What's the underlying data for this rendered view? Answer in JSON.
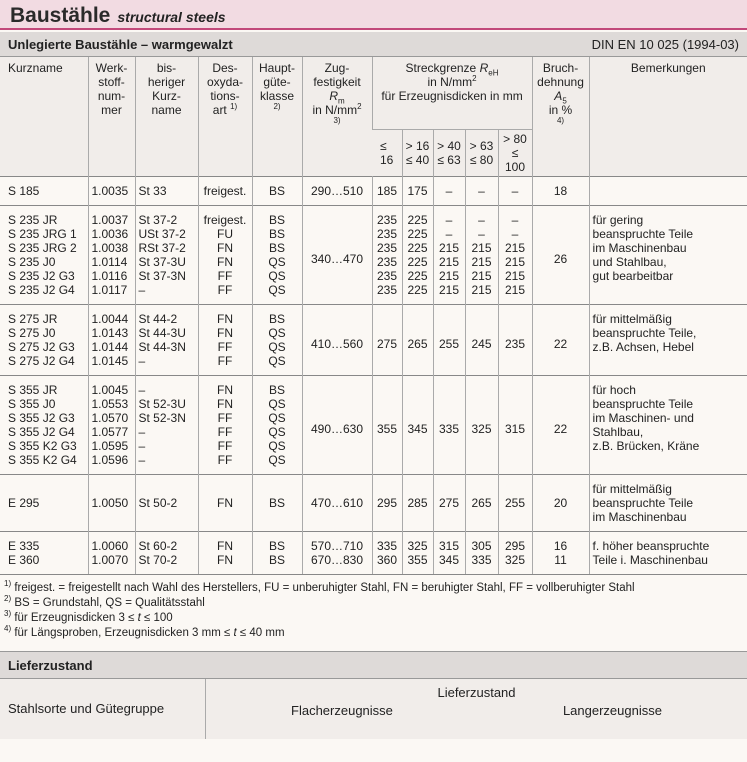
{
  "header": {
    "title": "Baustähle",
    "subtitle": "structural steels"
  },
  "section": {
    "title": "Unlegierte Baustähle – warmgewalzt",
    "norm": "DIN EN 10 025 (1994-03)"
  },
  "table": {
    "headers": [
      {
        "lines": [
          [
            "Kurzname"
          ]
        ]
      },
      {
        "lines": [
          [
            "Werk-"
          ],
          [
            "stoff-"
          ],
          [
            "num-"
          ],
          [
            "mer"
          ]
        ]
      },
      {
        "lines": [
          [
            "bis-"
          ],
          [
            "heriger"
          ],
          [
            "Kurz-"
          ],
          [
            "name"
          ]
        ]
      },
      {
        "lines": [
          [
            "Des-"
          ],
          [
            "oxyda-"
          ],
          [
            "tions-"
          ],
          [
            "art ",
            {
              "sup": "1)"
            }
          ]
        ]
      },
      {
        "lines": [
          [
            "Haupt-"
          ],
          [
            "güte-"
          ],
          [
            "klasse"
          ],
          [
            {
              "sup": "2)"
            }
          ]
        ]
      },
      {
        "lines": [
          [
            "Zug-"
          ],
          [
            "festigkeit"
          ],
          [
            {
              "i": "R"
            },
            {
              "sub": "m"
            }
          ],
          [
            "in N/mm",
            {
              "sup": "2"
            }
          ],
          [
            {
              "sup": "3)"
            }
          ]
        ]
      },
      {
        "lines": [
          [
            "Streckgrenze ",
            {
              "i": "R"
            },
            {
              "sub": "eH"
            }
          ],
          [
            "in N/mm",
            {
              "sup": "2"
            }
          ],
          [
            "für Erzeugnisdicken in mm"
          ]
        ]
      },
      {
        "lines": [
          [
            "Bruch-"
          ],
          [
            "dehnung"
          ],
          [
            {
              "i": "A"
            },
            {
              "sub": "5"
            }
          ],
          [
            "in %"
          ],
          [
            {
              "sup": "4)"
            }
          ]
        ]
      },
      {
        "lines": [
          [
            "Bemerkungen"
          ]
        ]
      }
    ],
    "yield_heads": [
      [
        [
          "≤ 16"
        ]
      ],
      [
        [
          "> 16"
        ],
        [
          "≤ 40"
        ]
      ],
      [
        [
          "> 40"
        ],
        [
          "≤ 63"
        ]
      ],
      [
        [
          "> 63"
        ],
        [
          "≤ 80"
        ]
      ],
      [
        [
          "> 80"
        ],
        [
          "≤ 100"
        ]
      ]
    ],
    "groups": [
      {
        "rows": [
          {
            "cells": [
              "S 185",
              "1.0035",
              "St 33",
              "freigest.",
              "BS"
            ],
            "rm": "290…510",
            "yield": [
              "185",
              "175",
              "–",
              "–",
              "–"
            ],
            "a": "18"
          }
        ]
      },
      {
        "rows": [
          {
            "cells": [
              "S 235 JR",
              "1.0037",
              "St 37-2",
              "freigest.",
              "BS"
            ],
            "yield": [
              "235",
              "225",
              "–",
              "–",
              "–"
            ]
          },
          {
            "cells": [
              "S 235 JRG 1",
              "1.0036",
              "USt 37-2",
              "FU",
              "BS"
            ],
            "yield": [
              "235",
              "225",
              "–",
              "–",
              "–"
            ]
          },
          {
            "cells": [
              "S 235 JRG 2",
              "1.0038",
              "RSt 37-2",
              "FN",
              "BS"
            ],
            "yield": [
              "235",
              "225",
              "215",
              "215",
              "215"
            ]
          },
          {
            "cells": [
              "S 235 J0",
              "1.0114",
              "St 37-3U",
              "FN",
              "QS"
            ],
            "yield": [
              "235",
              "225",
              "215",
              "215",
              "215"
            ]
          },
          {
            "cells": [
              "S 235 J2 G3",
              "1.0116",
              "St 37-3N",
              "FF",
              "QS"
            ],
            "yield": [
              "235",
              "225",
              "215",
              "215",
              "215"
            ]
          },
          {
            "cells": [
              "S 235 J2 G4",
              "1.0117",
              "–",
              "FF",
              "QS"
            ],
            "yield": [
              "235",
              "225",
              "215",
              "215",
              "215"
            ]
          }
        ],
        "rm": "340…470",
        "a": "26",
        "remark": [
          "für gering",
          "beanspruchte Teile",
          "im Maschinenbau",
          "und Stahlbau,",
          "gut bearbeitbar"
        ]
      },
      {
        "rows": [
          {
            "cells": [
              "S 275 JR",
              "1.0044",
              "St 44-2",
              "FN",
              "BS"
            ]
          },
          {
            "cells": [
              "S 275 J0",
              "1.0143",
              "St 44-3U",
              "FN",
              "QS"
            ]
          },
          {
            "cells": [
              "S 275 J2 G3",
              "1.0144",
              "St 44-3N",
              "FF",
              "QS"
            ]
          },
          {
            "cells": [
              "S 275 J2 G4",
              "1.0145",
              "–",
              "FF",
              "QS"
            ]
          }
        ],
        "rm": "410…560",
        "yield": [
          "275",
          "265",
          "255",
          "245",
          "235"
        ],
        "a": "22",
        "remark": [
          "für mittelmäßig",
          "beanspruchte Teile,",
          "z.B. Achsen, Hebel"
        ]
      },
      {
        "rows": [
          {
            "cells": [
              "S 355 JR",
              "1.0045",
              "–",
              "FN",
              "BS"
            ]
          },
          {
            "cells": [
              "S 355 J0",
              "1.0553",
              "St 52-3U",
              "FN",
              "QS"
            ]
          },
          {
            "cells": [
              "S 355 J2 G3",
              "1.0570",
              "St 52-3N",
              "FF",
              "QS"
            ]
          },
          {
            "cells": [
              "S 355 J2 G4",
              "1.0577",
              "–",
              "FF",
              "QS"
            ]
          },
          {
            "cells": [
              "S 355 K2 G3",
              "1.0595",
              "–",
              "FF",
              "QS"
            ]
          },
          {
            "cells": [
              "S 355 K2 G4",
              "1.0596",
              "–",
              "FF",
              "QS"
            ]
          }
        ],
        "rm": "490…630",
        "yield": [
          "355",
          "345",
          "335",
          "325",
          "315"
        ],
        "a": "22",
        "remark": [
          "für hoch",
          "beanspruchte Teile",
          "im Maschinen- und",
          "Stahlbau,",
          "z.B. Brücken, Kräne"
        ]
      },
      {
        "rows": [
          {
            "cells": [
              "E 295",
              "1.0050",
              "St 50-2",
              "FN",
              "BS"
            ],
            "rm": "470…610",
            "yield": [
              "295",
              "285",
              "275",
              "265",
              "255"
            ],
            "a": "20"
          }
        ],
        "remark": [
          "für mittelmäßig",
          "beanspruchte Teile",
          "im Maschinenbau"
        ]
      },
      {
        "rows": [
          {
            "cells": [
              "E 335",
              "1.0060",
              "St 60-2",
              "FN",
              "BS"
            ],
            "rm": "570…710",
            "yield": [
              "335",
              "325",
              "315",
              "305",
              "295"
            ],
            "a": "16"
          },
          {
            "cells": [
              "E 360",
              "1.0070",
              "St 70-2",
              "FN",
              "BS"
            ],
            "rm": "670…830",
            "yield": [
              "360",
              "355",
              "345",
              "335",
              "325"
            ],
            "a": "11"
          }
        ],
        "remark": [
          "f. höher beanspruchte",
          "Teile i. Maschinenbau"
        ]
      }
    ]
  },
  "footnotes": [
    [
      {
        "sup": "1)"
      },
      " freigest. = freigestellt nach Wahl des Herstellers, FU = unberuhigter Stahl, FN = beruhigter Stahl, FF = vollberuhigter Stahl"
    ],
    [
      {
        "sup": "2)"
      },
      " BS = Grundstahl, QS = Qualitätsstahl"
    ],
    [
      {
        "sup": "3)"
      },
      " für Erzeugnisdicken  3 ≤ ",
      {
        "i": "t"
      },
      " ≤ 100"
    ],
    [
      {
        "sup": "4)"
      },
      " für Längsproben, Erzeugnisdicken 3 mm ≤ ",
      {
        "i": "t"
      },
      " ≤ 40 mm"
    ]
  ],
  "delivery": {
    "title": "Lieferzustand",
    "col0": "Stahlsorte und Gütegruppe",
    "head": "Lieferzustand",
    "flat": "Flacherzeugnisse",
    "long": "Langerzeugnisse"
  }
}
